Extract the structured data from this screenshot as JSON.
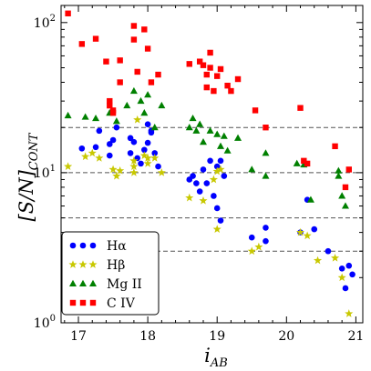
{
  "chart_data": {
    "type": "scatter",
    "xlabel_main": "i",
    "xlabel_sub": "AB",
    "ylabel_main": "[S/N]",
    "ylabel_sub": "CONT",
    "xlim": [
      16.75,
      21.1
    ],
    "ylim": [
      1,
      130
    ],
    "yscale": "log",
    "xticks": [
      17,
      18,
      19,
      20,
      21
    ],
    "yticks": [
      {
        "value": 1,
        "base": "10",
        "exp": "0"
      },
      {
        "value": 10,
        "base": "10",
        "exp": "1"
      },
      {
        "value": 100,
        "base": "10",
        "exp": "2"
      }
    ],
    "reference_lines": [
      3,
      5,
      10,
      20
    ],
    "legend": {
      "position": "lower-left"
    },
    "series": [
      {
        "name": "Hα",
        "marker": "circle",
        "color": "#0000ff",
        "points": [
          [
            17.05,
            14.5
          ],
          [
            17.25,
            14.8
          ],
          [
            17.3,
            19
          ],
          [
            17.45,
            15.5
          ],
          [
            17.45,
            13
          ],
          [
            17.5,
            16.5
          ],
          [
            17.55,
            20
          ],
          [
            17.75,
            17
          ],
          [
            17.75,
            13.5
          ],
          [
            17.8,
            16
          ],
          [
            17.85,
            12.5
          ],
          [
            17.9,
            11.5
          ],
          [
            17.95,
            14.2
          ],
          [
            18.0,
            15.8
          ],
          [
            18.0,
            21
          ],
          [
            18.05,
            19
          ],
          [
            18.05,
            18.5
          ],
          [
            18.1,
            13.5
          ],
          [
            18.15,
            11
          ],
          [
            18.6,
            9
          ],
          [
            18.65,
            9.5
          ],
          [
            18.7,
            8.5
          ],
          [
            18.75,
            7.5
          ],
          [
            18.8,
            10.5
          ],
          [
            18.85,
            8.5
          ],
          [
            18.9,
            12
          ],
          [
            18.95,
            7
          ],
          [
            19.0,
            11
          ],
          [
            19.05,
            12
          ],
          [
            19.1,
            9.5
          ],
          [
            19.0,
            5.8
          ],
          [
            19.05,
            4.8
          ],
          [
            19.5,
            3.7
          ],
          [
            19.7,
            4.3
          ],
          [
            19.7,
            3.5
          ],
          [
            20.2,
            4
          ],
          [
            20.3,
            6.6
          ],
          [
            20.4,
            4.2
          ],
          [
            20.6,
            3
          ],
          [
            20.8,
            2.3
          ],
          [
            20.85,
            1.7
          ],
          [
            20.9,
            2.4
          ],
          [
            20.95,
            2.1
          ]
        ]
      },
      {
        "name": "Hβ",
        "marker": "star",
        "color": "#c8c800",
        "points": [
          [
            16.85,
            11
          ],
          [
            17.1,
            12.8
          ],
          [
            17.2,
            13.5
          ],
          [
            17.3,
            12.5
          ],
          [
            17.5,
            10.5
          ],
          [
            17.55,
            9.5
          ],
          [
            17.6,
            10.3
          ],
          [
            17.8,
            12
          ],
          [
            17.8,
            11
          ],
          [
            17.8,
            10
          ],
          [
            17.85,
            22.5
          ],
          [
            17.95,
            13
          ],
          [
            18.0,
            12.5
          ],
          [
            18.0,
            11.5
          ],
          [
            18.1,
            12.5
          ],
          [
            18.2,
            10
          ],
          [
            18.6,
            6.8
          ],
          [
            18.8,
            6.5
          ],
          [
            18.95,
            9
          ],
          [
            19.0,
            10.2
          ],
          [
            19.0,
            4.2
          ],
          [
            19.05,
            10.5
          ],
          [
            19.5,
            3
          ],
          [
            19.6,
            3.2
          ],
          [
            20.2,
            4
          ],
          [
            20.3,
            3.8
          ],
          [
            20.45,
            2.6
          ],
          [
            20.7,
            2.7
          ],
          [
            20.8,
            2
          ],
          [
            20.9,
            1.15
          ]
        ]
      },
      {
        "name": "Mg II",
        "marker": "triangle",
        "color": "#008000",
        "points": [
          [
            16.85,
            24
          ],
          [
            17.1,
            23.5
          ],
          [
            17.25,
            23
          ],
          [
            17.45,
            25
          ],
          [
            17.55,
            22
          ],
          [
            17.7,
            28
          ],
          [
            17.8,
            35
          ],
          [
            17.9,
            30
          ],
          [
            17.95,
            25
          ],
          [
            18.0,
            33
          ],
          [
            18.1,
            20
          ],
          [
            18.2,
            28
          ],
          [
            18.6,
            20
          ],
          [
            18.65,
            23
          ],
          [
            18.7,
            19
          ],
          [
            18.75,
            21
          ],
          [
            18.8,
            16
          ],
          [
            18.9,
            19
          ],
          [
            19.0,
            18
          ],
          [
            19.05,
            15
          ],
          [
            19.1,
            17.5
          ],
          [
            19.15,
            14
          ],
          [
            19.3,
            17
          ],
          [
            19.5,
            10.5
          ],
          [
            19.7,
            9.5
          ],
          [
            19.7,
            13.5
          ],
          [
            20.15,
            11.5
          ],
          [
            20.25,
            11.3
          ],
          [
            20.35,
            6.6
          ],
          [
            20.75,
            10.3
          ],
          [
            20.75,
            9.5
          ],
          [
            20.8,
            7
          ],
          [
            20.85,
            6
          ]
        ]
      },
      {
        "name": "C IV",
        "marker": "square",
        "color": "#ff0000",
        "points": [
          [
            16.85,
            115
          ],
          [
            17.05,
            72
          ],
          [
            17.25,
            78
          ],
          [
            17.4,
            55
          ],
          [
            17.45,
            30
          ],
          [
            17.45,
            28
          ],
          [
            17.5,
            26
          ],
          [
            17.5,
            25
          ],
          [
            17.6,
            40
          ],
          [
            17.6,
            56
          ],
          [
            17.8,
            95
          ],
          [
            17.8,
            77
          ],
          [
            17.85,
            47
          ],
          [
            17.95,
            90
          ],
          [
            18.0,
            67
          ],
          [
            18.05,
            40
          ],
          [
            18.15,
            45
          ],
          [
            18.6,
            53
          ],
          [
            18.75,
            55
          ],
          [
            18.8,
            52
          ],
          [
            18.85,
            45
          ],
          [
            18.85,
            37
          ],
          [
            18.9,
            63
          ],
          [
            18.9,
            50
          ],
          [
            18.95,
            35
          ],
          [
            19.0,
            44
          ],
          [
            19.05,
            49
          ],
          [
            19.15,
            38
          ],
          [
            19.2,
            35
          ],
          [
            19.3,
            42
          ],
          [
            19.55,
            26
          ],
          [
            19.7,
            20
          ],
          [
            20.2,
            27
          ],
          [
            20.25,
            12
          ],
          [
            20.3,
            11.5
          ],
          [
            20.7,
            15
          ],
          [
            20.9,
            10.5
          ],
          [
            20.85,
            8
          ]
        ]
      }
    ]
  }
}
